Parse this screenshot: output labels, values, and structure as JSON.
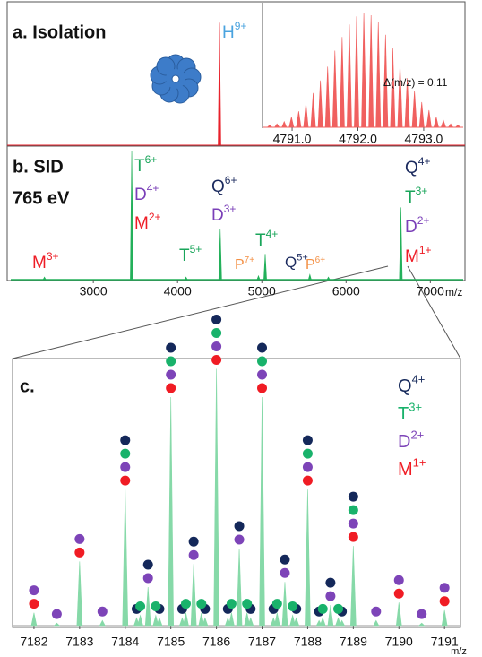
{
  "chart_data": [
    {
      "type": "spike",
      "title": "a. Isolation",
      "annotations": [
        {
          "text": "H9+",
          "color": "#4aa3df"
        }
      ],
      "values": [
        100
      ],
      "ylim": [
        0,
        117
      ],
      "color": "#e8202a"
    },
    {
      "type": "spike",
      "annotations": [
        {
          "text": "Δ(m/z) = 0.11",
          "color": "#111111"
        }
      ],
      "x": [
        4790.66,
        4790.77,
        4790.88,
        4790.99,
        4791.1,
        4791.21,
        4791.32,
        4791.43,
        4791.54,
        4791.65,
        4791.76,
        4791.87,
        4791.98,
        4792.09,
        4792.2,
        4792.31,
        4792.42,
        4792.53,
        4792.64,
        4792.75,
        4792.86,
        4792.97,
        4793.08,
        4793.19,
        4793.3,
        4793.41,
        4793.52
      ],
      "values": [
        2,
        3,
        5,
        9,
        14,
        21,
        30,
        41,
        53,
        67,
        79,
        90,
        97,
        100,
        98,
        92,
        81,
        69,
        56,
        43,
        32,
        22,
        15,
        9,
        6,
        3,
        2
      ],
      "xlim": [
        4790.55,
        4793.6
      ],
      "xticks": [
        {
          "value": 4791,
          "label": "4791.0"
        },
        {
          "value": 4792,
          "label": "4792.0"
        },
        {
          "value": 4793,
          "label": "4793.0"
        }
      ],
      "ylim": [
        0,
        109
      ],
      "color": "#f0605f"
    },
    {
      "type": "spike",
      "title": "b. SID",
      "subtitle": "765 eV",
      "x_label": "m/z",
      "annotations": [
        {
          "text": "T6+",
          "color": "#19a55a"
        },
        {
          "text": "D4+",
          "color": "#7a3fb8"
        },
        {
          "text": "M2+",
          "color": "#ee1c25"
        },
        {
          "text": "Q6+",
          "color": "#1b2a5e"
        },
        {
          "text": "D3+",
          "color": "#7a3fb8"
        },
        {
          "text": "M3+",
          "color": "#ee1c25"
        },
        {
          "text": "T5+",
          "color": "#19a55a"
        },
        {
          "text": "T4+",
          "color": "#19a55a"
        },
        {
          "text": "P7+",
          "color": "#f39045"
        },
        {
          "text": "Q5+",
          "color": "#1b2a5e"
        },
        {
          "text": "P6+",
          "color": "#f39045"
        },
        {
          "text": "Q4+",
          "color": "#1b2a5e"
        },
        {
          "text": "T3+",
          "color": "#19a55a"
        },
        {
          "text": "D2+",
          "color": "#7a3fb8"
        },
        {
          "text": "M1+",
          "color": "#ee1c25"
        }
      ],
      "x": [
        2420,
        3456,
        4100,
        4506,
        4960,
        5040,
        5570,
        5790,
        6650
      ],
      "values": [
        2,
        100,
        2,
        39,
        3,
        20,
        4,
        2,
        56
      ],
      "xlim": [
        2020,
        7390
      ],
      "xticks": [
        3000,
        4000,
        5000,
        6000,
        7000
      ],
      "ylim": [
        0,
        103.5
      ],
      "color": "#23b05a"
    },
    {
      "type": "spike",
      "title": "c.",
      "x_label": "m/z",
      "x": [
        7182,
        7182.5,
        7183,
        7183.5,
        7184,
        7184.25,
        7184.33,
        7184.5,
        7184.67,
        7184.75,
        7185,
        7185.25,
        7185.33,
        7185.5,
        7185.67,
        7185.75,
        7186,
        7186.25,
        7186.33,
        7186.5,
        7186.67,
        7186.75,
        7187,
        7187.25,
        7187.33,
        7187.5,
        7187.67,
        7187.75,
        7188,
        7188.25,
        7188.33,
        7188.5,
        7188.67,
        7188.75,
        7189,
        7189.5,
        7190,
        7190.5,
        7191
      ],
      "values": [
        5,
        1,
        25,
        2,
        53,
        3,
        4,
        15,
        4,
        3,
        89,
        3,
        5,
        24,
        5,
        3,
        100,
        3,
        5,
        30,
        5,
        3,
        89,
        3,
        5,
        17,
        4,
        3,
        53,
        2,
        3,
        8,
        3,
        2,
        31,
        2,
        9,
        1,
        6
      ],
      "series": [
        {
          "name": "Q4+",
          "color": "#14285a",
          "x": [
            7184,
            7184.25,
            7184.5,
            7184.75,
            7185,
            7185.25,
            7185.5,
            7185.75,
            7186,
            7186.25,
            7186.5,
            7186.75,
            7187,
            7187.25,
            7187.5,
            7187.75,
            7188,
            7188.25,
            7188.5,
            7188.75,
            7189
          ]
        },
        {
          "name": "T3+",
          "color": "#19b26b",
          "x": [
            7184,
            7184.33,
            7184.67,
            7185,
            7185.33,
            7185.67,
            7186,
            7186.33,
            7186.67,
            7187,
            7187.33,
            7187.67,
            7188,
            7188.33,
            7188.67,
            7189
          ]
        },
        {
          "name": "D2+",
          "color": "#7d44b8",
          "x": [
            7182,
            7182.5,
            7183,
            7183.5,
            7184,
            7184.5,
            7185,
            7185.5,
            7186,
            7186.5,
            7187,
            7187.5,
            7188,
            7188.5,
            7189,
            7189.5,
            7190,
            7190.5,
            7191
          ]
        },
        {
          "name": "M1+",
          "color": "#f01c24",
          "x": [
            7182,
            7183,
            7184,
            7185,
            7186,
            7187,
            7188,
            7189,
            7190,
            7191
          ]
        }
      ],
      "xlim": [
        7181.53,
        7191.35
      ],
      "xticks": [
        7182,
        7183,
        7184,
        7185,
        7186,
        7187,
        7188,
        7189,
        7190,
        7191
      ],
      "ylim": [
        0,
        104
      ],
      "color": "#86d9a8"
    }
  ]
}
